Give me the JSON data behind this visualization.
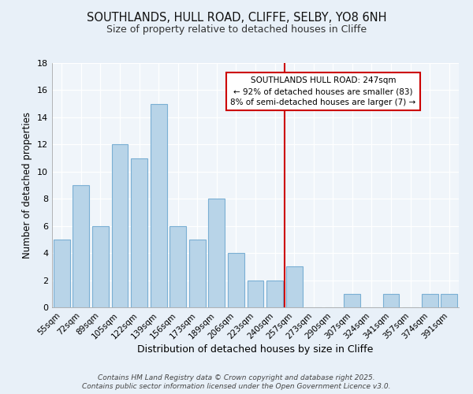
{
  "title1": "SOUTHLANDS, HULL ROAD, CLIFFE, SELBY, YO8 6NH",
  "title2": "Size of property relative to detached houses in Cliffe",
  "xlabel": "Distribution of detached houses by size in Cliffe",
  "ylabel": "Number of detached properties",
  "categories": [
    "55sqm",
    "72sqm",
    "89sqm",
    "105sqm",
    "122sqm",
    "139sqm",
    "156sqm",
    "173sqm",
    "189sqm",
    "206sqm",
    "223sqm",
    "240sqm",
    "257sqm",
    "273sqm",
    "290sqm",
    "307sqm",
    "324sqm",
    "341sqm",
    "357sqm",
    "374sqm",
    "391sqm"
  ],
  "values": [
    5,
    9,
    6,
    12,
    11,
    15,
    6,
    5,
    8,
    4,
    2,
    2,
    3,
    0,
    0,
    1,
    0,
    1,
    0,
    1,
    1
  ],
  "bar_color": "#b8d4e8",
  "bar_edge_color": "#7aafd4",
  "highlight_index": 11,
  "highlight_line_color": "#cc0000",
  "annotation_line1": "SOUTHLANDS HULL ROAD: 247sqm",
  "annotation_line2": "← 92% of detached houses are smaller (83)",
  "annotation_line3": "8% of semi-detached houses are larger (7) →",
  "ylim": [
    0,
    18
  ],
  "yticks": [
    0,
    2,
    4,
    6,
    8,
    10,
    12,
    14,
    16,
    18
  ],
  "footer": "Contains HM Land Registry data © Crown copyright and database right 2025.\nContains public sector information licensed under the Open Government Licence v3.0.",
  "bg_color": "#e8f0f8",
  "plot_bg_color": "#f0f5fa",
  "grid_color": "#ffffff"
}
